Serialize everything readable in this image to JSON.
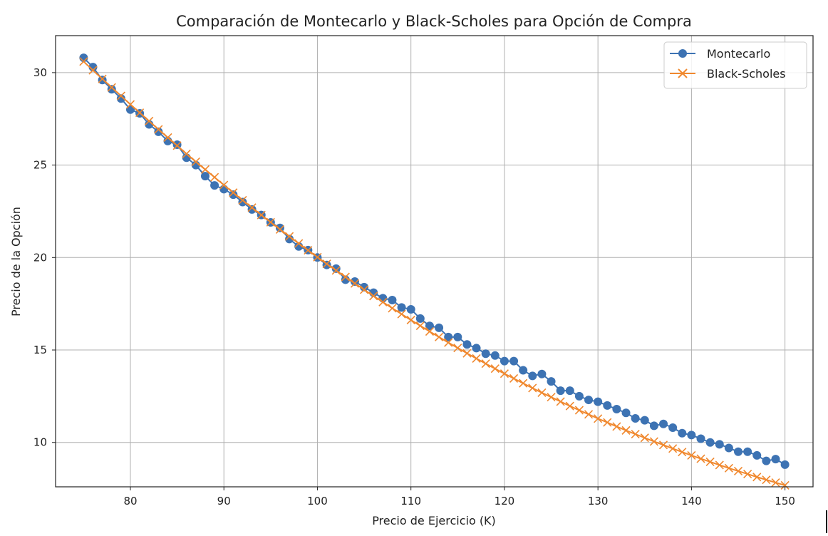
{
  "chart_data": {
    "type": "line",
    "title": "Comparación de Montecarlo y Black-Scholes para Opción de Compra",
    "xlabel": "Precio de Ejercicio (K)",
    "ylabel": "Precio de la Opción",
    "xlim": [
      72,
      153
    ],
    "ylim": [
      7.6,
      32.0
    ],
    "xticks": [
      80,
      90,
      100,
      110,
      120,
      130,
      140,
      150
    ],
    "yticks": [
      10,
      15,
      20,
      25,
      30
    ],
    "grid": true,
    "legend_position": "top-right",
    "x": [
      75,
      76,
      77,
      78,
      79,
      80,
      81,
      82,
      83,
      84,
      85,
      86,
      87,
      88,
      89,
      90,
      91,
      92,
      93,
      94,
      95,
      96,
      97,
      98,
      99,
      100,
      101,
      102,
      103,
      104,
      105,
      106,
      107,
      108,
      109,
      110,
      111,
      112,
      113,
      114,
      115,
      116,
      117,
      118,
      119,
      120,
      121,
      122,
      123,
      124,
      125,
      126,
      127,
      128,
      129,
      130,
      131,
      132,
      133,
      134,
      135,
      136,
      137,
      138,
      139,
      140,
      141,
      142,
      143,
      144,
      145,
      146,
      147,
      148,
      149,
      150
    ],
    "series": [
      {
        "name": "Montecarlo",
        "color": "#3d73b3",
        "marker": "circle",
        "values": [
          30.8,
          30.3,
          29.6,
          29.1,
          28.6,
          28.0,
          27.8,
          27.2,
          26.8,
          26.3,
          26.1,
          25.4,
          25.0,
          24.4,
          23.9,
          23.7,
          23.4,
          23.0,
          22.6,
          22.3,
          21.9,
          21.6,
          21.0,
          20.6,
          20.4,
          20.0,
          19.6,
          19.4,
          18.8,
          18.7,
          18.4,
          18.1,
          17.8,
          17.7,
          17.3,
          17.2,
          16.7,
          16.3,
          16.2,
          15.7,
          15.7,
          15.3,
          15.1,
          14.8,
          14.7,
          14.4,
          14.4,
          13.9,
          13.6,
          13.7,
          13.3,
          12.8,
          12.8,
          12.5,
          12.3,
          12.2,
          12.0,
          11.8,
          11.6,
          11.3,
          11.2,
          10.9,
          11.0,
          10.8,
          10.5,
          10.4,
          10.2,
          10.0,
          9.9,
          9.7,
          9.5,
          9.5,
          9.3,
          9.0,
          9.1,
          8.8
        ]
      },
      {
        "name": "Black-Scholes",
        "color": "#f0882e",
        "marker": "x",
        "values": [
          30.6,
          30.13,
          29.66,
          29.2,
          28.74,
          28.28,
          27.83,
          27.38,
          26.93,
          26.49,
          26.05,
          25.61,
          25.18,
          24.76,
          24.34,
          23.92,
          23.51,
          23.1,
          22.7,
          22.3,
          21.91,
          21.52,
          21.14,
          20.76,
          20.39,
          20.02,
          19.66,
          19.3,
          18.95,
          18.6,
          18.26,
          17.92,
          17.59,
          17.26,
          16.94,
          16.62,
          16.31,
          16.0,
          15.7,
          15.4,
          15.11,
          14.82,
          14.54,
          14.26,
          13.99,
          13.72,
          13.46,
          13.2,
          12.94,
          12.69,
          12.45,
          12.21,
          11.97,
          11.74,
          11.52,
          11.29,
          11.08,
          10.86,
          10.65,
          10.45,
          10.25,
          10.05,
          9.86,
          9.67,
          9.48,
          9.3,
          9.12,
          8.95,
          8.78,
          8.61,
          8.45,
          8.29,
          8.13,
          7.98,
          7.83,
          7.68
        ]
      }
    ]
  }
}
